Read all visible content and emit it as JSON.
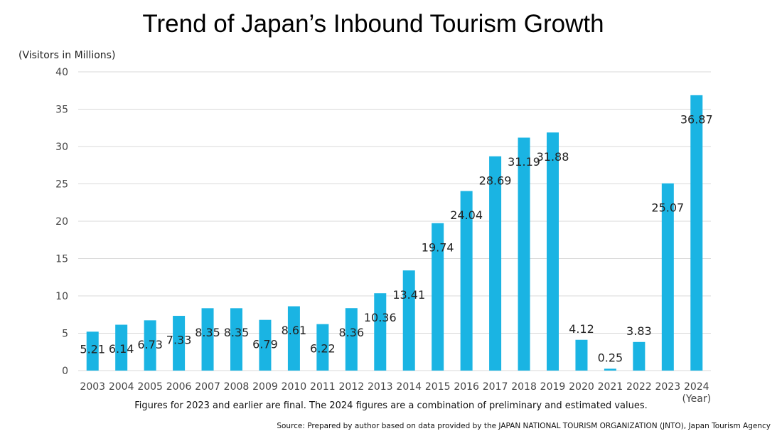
{
  "chart_data": {
    "type": "bar",
    "title": "Trend of Japan’s Inbound Tourism Growth",
    "ylabel": "(Visitors in Millions)",
    "xlabel": "(Year)",
    "ylim": [
      0,
      40
    ],
    "yticks": [
      0,
      5,
      10,
      15,
      20,
      25,
      30,
      35,
      40
    ],
    "grid": true,
    "bar_color": "#1ab4e3",
    "categories": [
      "2003",
      "2004",
      "2005",
      "2006",
      "2007",
      "2008",
      "2009",
      "2010",
      "2011",
      "2012",
      "2013",
      "2014",
      "2015",
      "2016",
      "2017",
      "2018",
      "2019",
      "2020",
      "2021",
      "2022",
      "2023",
      "2024"
    ],
    "values": [
      5.21,
      6.14,
      6.73,
      7.33,
      8.35,
      8.35,
      6.79,
      8.61,
      6.22,
      8.36,
      10.36,
      13.41,
      19.74,
      24.04,
      28.69,
      31.19,
      31.88,
      4.12,
      0.25,
      3.83,
      25.07,
      36.87
    ],
    "labels": [
      "5.21",
      "6.14",
      "6.73",
      "7.33",
      "8.35",
      "8.35",
      "6.79",
      "8.61",
      "6.22",
      "8.36",
      "10.36",
      "13.41",
      "19.74",
      "24.04",
      "28.69",
      "31.19",
      "31.88",
      "4.12",
      "0.25",
      "3.83",
      "25.07",
      "36.87"
    ]
  },
  "note": "Figures for 2023 and earlier are final. The 2024 figures are a combination of preliminary and estimated values.",
  "source": "Source: Prepared by author based on data provided by the JAPAN NATIONAL TOURISM ORGANIZATION (JNTO), Japan Tourism Agency"
}
